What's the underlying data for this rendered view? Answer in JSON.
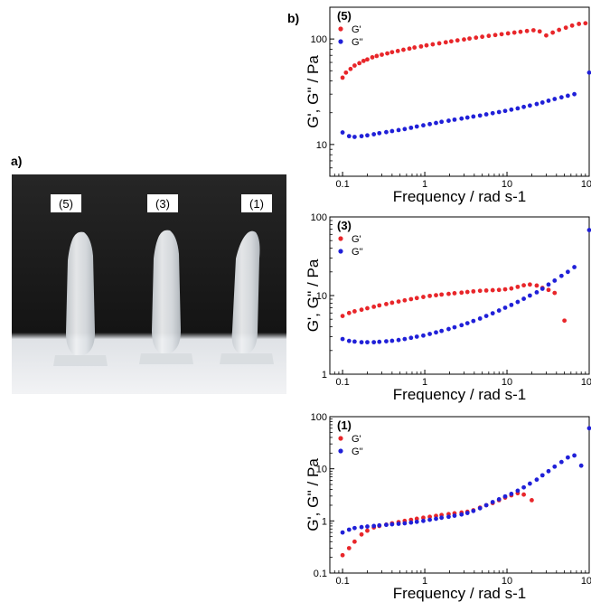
{
  "figure": {
    "panel_a_label": "a)",
    "panel_b_label": "b)"
  },
  "photo": {
    "vial_labels": [
      "(5)",
      "(3)",
      "(1)"
    ],
    "background_color": "#1c1c1c",
    "table_color": "#eceef0",
    "vial_color": "#e4e7ea"
  },
  "colors": {
    "g_prime": "#e8262a",
    "g_double_prime": "#2020d8"
  },
  "chart_data": [
    {
      "type": "scatter",
      "panel_label": "(5)",
      "xlabel": "Frequency / rad s-1",
      "ylabel": "G', G'' / Pa",
      "x_scale": "log",
      "y_scale": "log",
      "xlim": [
        0.07,
        100
      ],
      "ylim": [
        5,
        200
      ],
      "x_ticks": [
        "0.1",
        "1",
        "10",
        "100"
      ],
      "y_ticks": [
        "10",
        "100"
      ],
      "y_tick_values": [
        10,
        100
      ],
      "legend_position": "top-left",
      "series": [
        {
          "name": "G'",
          "color": "#e8262a",
          "points": [
            [
              0.1,
              43
            ],
            [
              0.11,
              48
            ],
            [
              0.125,
              52
            ],
            [
              0.14,
              56
            ],
            [
              0.16,
              59
            ],
            [
              0.18,
              62
            ],
            [
              0.2,
              64
            ],
            [
              0.23,
              67
            ],
            [
              0.26,
              69
            ],
            [
              0.3,
              71
            ],
            [
              0.35,
              73
            ],
            [
              0.4,
              75
            ],
            [
              0.47,
              77
            ],
            [
              0.55,
              79
            ],
            [
              0.65,
              81
            ],
            [
              0.75,
              83
            ],
            [
              0.9,
              85
            ],
            [
              1.05,
              87
            ],
            [
              1.25,
              89
            ],
            [
              1.5,
              91
            ],
            [
              1.8,
              93
            ],
            [
              2.1,
              95
            ],
            [
              2.5,
              97
            ],
            [
              3,
              99
            ],
            [
              3.5,
              101
            ],
            [
              4.2,
              103
            ],
            [
              5,
              105
            ],
            [
              6,
              107
            ],
            [
              7.2,
              109
            ],
            [
              8.6,
              111
            ],
            [
              10.3,
              113
            ],
            [
              12.3,
              115
            ],
            [
              14.6,
              117
            ],
            [
              17.5,
              119
            ],
            [
              21,
              121
            ],
            [
              25,
              118
            ],
            [
              30,
              108
            ],
            [
              36,
              115
            ],
            [
              43,
              122
            ],
            [
              52,
              128
            ],
            [
              62,
              134
            ],
            [
              75,
              139
            ],
            [
              90,
              141
            ]
          ]
        },
        {
          "name": "G''",
          "color": "#2020d8",
          "points": [
            [
              0.1,
              13
            ],
            [
              0.12,
              12
            ],
            [
              0.14,
              11.8
            ],
            [
              0.17,
              12
            ],
            [
              0.2,
              12.2
            ],
            [
              0.24,
              12.5
            ],
            [
              0.28,
              12.8
            ],
            [
              0.34,
              13.1
            ],
            [
              0.4,
              13.4
            ],
            [
              0.48,
              13.7
            ],
            [
              0.57,
              14
            ],
            [
              0.68,
              14.4
            ],
            [
              0.8,
              14.8
            ],
            [
              0.96,
              15.2
            ],
            [
              1.15,
              15.6
            ],
            [
              1.37,
              16
            ],
            [
              1.6,
              16.4
            ],
            [
              1.95,
              16.8
            ],
            [
              2.3,
              17.2
            ],
            [
              2.8,
              17.6
            ],
            [
              3.3,
              18
            ],
            [
              3.9,
              18.4
            ],
            [
              4.7,
              18.8
            ],
            [
              5.6,
              19.3
            ],
            [
              6.7,
              19.8
            ],
            [
              8,
              20.3
            ],
            [
              9.5,
              20.8
            ],
            [
              11.3,
              21.4
            ],
            [
              13.5,
              22
            ],
            [
              16,
              22.7
            ],
            [
              19,
              23.4
            ],
            [
              23,
              24.2
            ],
            [
              27,
              25
            ],
            [
              32,
              26
            ],
            [
              38,
              27
            ],
            [
              46,
              28
            ],
            [
              55,
              29
            ],
            [
              66,
              30
            ],
            [
              100,
              48
            ]
          ]
        }
      ]
    },
    {
      "type": "scatter",
      "panel_label": "(3)",
      "xlabel": "Frequency / rad s-1",
      "ylabel": "G', G'' / Pa",
      "x_scale": "log",
      "y_scale": "log",
      "xlim": [
        0.07,
        100
      ],
      "ylim": [
        1,
        100
      ],
      "x_ticks": [
        "0.1",
        "1",
        "10",
        "100"
      ],
      "y_ticks": [
        "1",
        "10",
        "100"
      ],
      "y_tick_values": [
        1,
        10,
        100
      ],
      "legend_position": "top-left",
      "series": [
        {
          "name": "G'",
          "color": "#e8262a",
          "points": [
            [
              0.1,
              5.5
            ],
            [
              0.12,
              6
            ],
            [
              0.14,
              6.3
            ],
            [
              0.17,
              6.6
            ],
            [
              0.2,
              6.9
            ],
            [
              0.24,
              7.2
            ],
            [
              0.28,
              7.5
            ],
            [
              0.34,
              7.8
            ],
            [
              0.4,
              8.1
            ],
            [
              0.48,
              8.4
            ],
            [
              0.57,
              8.7
            ],
            [
              0.68,
              9
            ],
            [
              0.8,
              9.3
            ],
            [
              0.96,
              9.6
            ],
            [
              1.15,
              9.9
            ],
            [
              1.37,
              10.1
            ],
            [
              1.6,
              10.3
            ],
            [
              1.95,
              10.5
            ],
            [
              2.3,
              10.7
            ],
            [
              2.8,
              10.9
            ],
            [
              3.3,
              11.1
            ],
            [
              3.9,
              11.3
            ],
            [
              4.7,
              11.5
            ],
            [
              5.6,
              11.6
            ],
            [
              6.7,
              11.7
            ],
            [
              8,
              11.8
            ],
            [
              9.5,
              12
            ],
            [
              11.3,
              12.3
            ],
            [
              13.5,
              12.9
            ],
            [
              16,
              13.5
            ],
            [
              19,
              13.8
            ],
            [
              23,
              13.4
            ],
            [
              27,
              12.5
            ],
            [
              32,
              11.8
            ],
            [
              38,
              10.8
            ],
            [
              50,
              4.8
            ]
          ]
        },
        {
          "name": "G''",
          "color": "#2020d8",
          "points": [
            [
              0.1,
              2.8
            ],
            [
              0.12,
              2.65
            ],
            [
              0.14,
              2.6
            ],
            [
              0.17,
              2.55
            ],
            [
              0.2,
              2.55
            ],
            [
              0.24,
              2.55
            ],
            [
              0.28,
              2.58
            ],
            [
              0.34,
              2.62
            ],
            [
              0.4,
              2.66
            ],
            [
              0.48,
              2.72
            ],
            [
              0.57,
              2.8
            ],
            [
              0.68,
              2.9
            ],
            [
              0.8,
              3
            ],
            [
              0.96,
              3.1
            ],
            [
              1.15,
              3.25
            ],
            [
              1.37,
              3.4
            ],
            [
              1.6,
              3.55
            ],
            [
              1.95,
              3.75
            ],
            [
              2.3,
              3.95
            ],
            [
              2.8,
              4.2
            ],
            [
              3.3,
              4.45
            ],
            [
              3.9,
              4.75
            ],
            [
              4.7,
              5.1
            ],
            [
              5.6,
              5.5
            ],
            [
              6.7,
              5.95
            ],
            [
              8,
              6.45
            ],
            [
              9.5,
              7
            ],
            [
              11.3,
              7.6
            ],
            [
              13.5,
              8.3
            ],
            [
              16,
              9.1
            ],
            [
              19,
              10
            ],
            [
              23,
              11
            ],
            [
              27,
              12.2
            ],
            [
              32,
              13.8
            ],
            [
              38,
              15.5
            ],
            [
              46,
              17.8
            ],
            [
              55,
              20
            ],
            [
              66,
              23
            ],
            [
              100,
              68
            ]
          ]
        }
      ]
    },
    {
      "type": "scatter",
      "panel_label": "(1)",
      "xlabel": "Frequency / rad s-1",
      "ylabel": "G', G'' / Pa",
      "x_scale": "log",
      "y_scale": "log",
      "xlim": [
        0.07,
        100
      ],
      "ylim": [
        0.1,
        100
      ],
      "x_ticks": [
        "0.1",
        "1",
        "10",
        "100"
      ],
      "y_ticks": [
        "0.1",
        "1",
        "10",
        "100"
      ],
      "y_tick_values": [
        0.1,
        1,
        10,
        100
      ],
      "legend_position": "top-left",
      "series": [
        {
          "name": "G'",
          "color": "#e8262a",
          "points": [
            [
              0.1,
              0.22
            ],
            [
              0.12,
              0.3
            ],
            [
              0.14,
              0.4
            ],
            [
              0.17,
              0.55
            ],
            [
              0.2,
              0.65
            ],
            [
              0.24,
              0.75
            ],
            [
              0.28,
              0.8
            ],
            [
              0.34,
              0.85
            ],
            [
              0.4,
              0.9
            ],
            [
              0.48,
              0.95
            ],
            [
              0.57,
              1
            ],
            [
              0.68,
              1.05
            ],
            [
              0.8,
              1.1
            ],
            [
              0.96,
              1.15
            ],
            [
              1.15,
              1.2
            ],
            [
              1.37,
              1.25
            ],
            [
              1.6,
              1.3
            ],
            [
              1.95,
              1.35
            ],
            [
              2.3,
              1.4
            ],
            [
              2.8,
              1.45
            ],
            [
              3.3,
              1.5
            ],
            [
              3.9,
              1.6
            ],
            [
              4.7,
              1.8
            ],
            [
              5.6,
              2
            ],
            [
              6.7,
              2.2
            ],
            [
              8,
              2.5
            ],
            [
              9.5,
              2.8
            ],
            [
              11.3,
              3.1
            ],
            [
              13.5,
              3.4
            ],
            [
              16,
              3.2
            ],
            [
              20,
              2.5
            ]
          ]
        },
        {
          "name": "G''",
          "color": "#2020d8",
          "points": [
            [
              0.1,
              0.6
            ],
            [
              0.12,
              0.68
            ],
            [
              0.14,
              0.73
            ],
            [
              0.17,
              0.76
            ],
            [
              0.2,
              0.78
            ],
            [
              0.24,
              0.8
            ],
            [
              0.28,
              0.82
            ],
            [
              0.34,
              0.84
            ],
            [
              0.4,
              0.86
            ],
            [
              0.48,
              0.88
            ],
            [
              0.57,
              0.9
            ],
            [
              0.68,
              0.93
            ],
            [
              0.8,
              0.96
            ],
            [
              0.96,
              1
            ],
            [
              1.15,
              1.05
            ],
            [
              1.37,
              1.1
            ],
            [
              1.6,
              1.15
            ],
            [
              1.95,
              1.2
            ],
            [
              2.3,
              1.26
            ],
            [
              2.8,
              1.33
            ],
            [
              3.3,
              1.42
            ],
            [
              3.9,
              1.55
            ],
            [
              4.7,
              1.75
            ],
            [
              5.6,
              2
            ],
            [
              6.7,
              2.3
            ],
            [
              8,
              2.6
            ],
            [
              9.5,
              2.95
            ],
            [
              11.3,
              3.3
            ],
            [
              13.5,
              3.8
            ],
            [
              16,
              4.4
            ],
            [
              19,
              5.2
            ],
            [
              23,
              6.2
            ],
            [
              27,
              7.5
            ],
            [
              32,
              9
            ],
            [
              38,
              11
            ],
            [
              46,
              13.5
            ],
            [
              55,
              16.5
            ],
            [
              66,
              18
            ],
            [
              80,
              11.5
            ],
            [
              100,
              60
            ]
          ]
        }
      ]
    }
  ]
}
